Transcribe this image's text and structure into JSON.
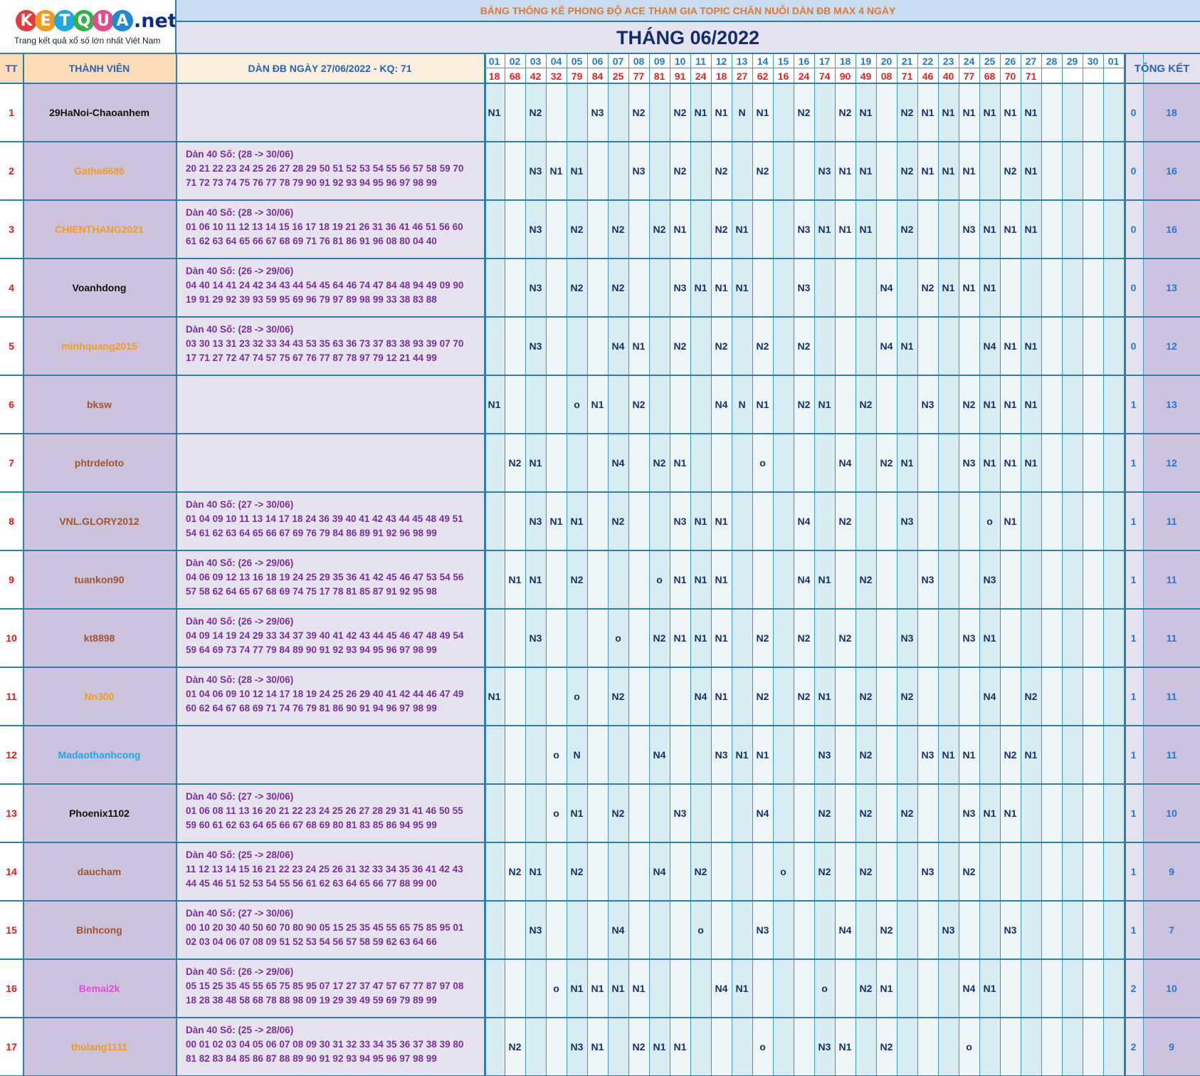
{
  "logo": {
    "letters": [
      "K",
      "E",
      "T",
      "Q",
      "U",
      "A"
    ],
    "letter_colors": [
      "#e23b3b",
      "#f29a1f",
      "#1ea7e1",
      "#2db34a",
      "#e64a8a",
      "#1b8ad3"
    ],
    "suffix": ".net",
    "tagline": "Trang kết quả xổ số lớn nhất Việt Nam"
  },
  "title": "BẢNG THỐNG KÊ PHONG ĐỘ ACE THAM GIA TOPIC CHĂN NUÔI DÀN ĐB MAX 4 NGÀY",
  "month": "THÁNG 06/2022",
  "headers": {
    "tt": "TT",
    "member": "THÀNH VIÊN",
    "dan": "DÀN ĐB NGÀY 27/06/2022 - KQ: 71",
    "summary": "TỔNG KẾT"
  },
  "days": [
    "01",
    "02",
    "03",
    "04",
    "05",
    "06",
    "07",
    "08",
    "09",
    "10",
    "11",
    "12",
    "13",
    "14",
    "15",
    "16",
    "17",
    "18",
    "19",
    "20",
    "21",
    "22",
    "23",
    "24",
    "25",
    "26",
    "27",
    "28",
    "29",
    "30",
    "01"
  ],
  "results": [
    "18",
    "68",
    "42",
    "32",
    "79",
    "84",
    "25",
    "77",
    "81",
    "91",
    "24",
    "18",
    "27",
    "62",
    "16",
    "24",
    "74",
    "90",
    "49",
    "08",
    "71",
    "46",
    "40",
    "77",
    "68",
    "70",
    "71",
    "",
    "",
    "",
    ""
  ],
  "rows": [
    {
      "tt": "1",
      "name": "29HaNoi-Chaoanhem",
      "name_color": "#111111",
      "dan_title": "",
      "dan_line1": "",
      "dan_line2": "",
      "marks": [
        "N1",
        "",
        "N2",
        "",
        "",
        "N3",
        "",
        "N2",
        "",
        "N2",
        "N1",
        "N1",
        "N",
        "N1",
        "",
        "N2",
        "",
        "N2",
        "N1",
        "",
        "N2",
        "N1",
        "N1",
        "N1",
        "N1",
        "N1",
        "N1",
        "",
        "",
        "",
        ""
      ],
      "col1": "0",
      "col2": "18"
    },
    {
      "tt": "2",
      "name": "Gathe8686",
      "name_color": "#f29a1f",
      "dan_title": "Dàn 40 Số: (28 -> 30/06)",
      "dan_line1": "20 21 22 23 24 25 26 27 28 29 50 51 52 53 54 55 56 57 58 59 70",
      "dan_line2": "71 72 73 74 75 76 77 78 79 90 91 92 93 94 95 96 97 98 99",
      "marks": [
        "",
        "",
        "N3",
        "N1",
        "N1",
        "",
        "",
        "N3",
        "",
        "N2",
        "",
        "N2",
        "",
        "N2",
        "",
        "",
        "N3",
        "N1",
        "N1",
        "",
        "N2",
        "N1",
        "N1",
        "N1",
        "",
        "N2",
        "N1",
        "",
        "",
        "",
        ""
      ],
      "col1": "0",
      "col2": "16"
    },
    {
      "tt": "3",
      "name": "CHIENTHANG2021",
      "name_color": "#f29a1f",
      "dan_title": "Dàn 40 Số: (28 -> 30/06)",
      "dan_line1": "01 06 10 11 12 13 14 15 16 17 18 19 21 26 31 36 41 46 51 56 60",
      "dan_line2": "61 62 63 64 65 66 67 68 69 71 76 81 86 91 96 08 80 04 40",
      "marks": [
        "",
        "",
        "N3",
        "",
        "N2",
        "",
        "N2",
        "",
        "N2",
        "N1",
        "",
        "N2",
        "N1",
        "",
        "",
        "N3",
        "N1",
        "N1",
        "N1",
        "",
        "N2",
        "",
        "",
        "N3",
        "N1",
        "N1",
        "N1",
        "",
        "",
        "",
        ""
      ],
      "col1": "0",
      "col2": "16"
    },
    {
      "tt": "4",
      "name": "Voanhdong",
      "name_color": "#111111",
      "dan_title": "Dàn 40 Số: (26 -> 29/06)",
      "dan_line1": "04 40 14 41 24 42 34 43 44 54 45 64 46 74 47 84 48 94 49 09 90",
      "dan_line2": "19 91 29 92 39 93 59 95 69 96 79 97 89 98 99 33 38 83 88",
      "marks": [
        "",
        "",
        "N3",
        "",
        "N2",
        "",
        "N2",
        "",
        "",
        "N3",
        "N1",
        "N1",
        "N1",
        "",
        "",
        "N3",
        "",
        "",
        "",
        "N4",
        "",
        "N2",
        "N1",
        "N1",
        "N1",
        "",
        "",
        "",
        "",
        "",
        ""
      ],
      "col1": "0",
      "col2": "13"
    },
    {
      "tt": "5",
      "name": "minhquang2015",
      "name_color": "#f29a1f",
      "dan_title": "Dàn 40 Số: (28 -> 30/06)",
      "dan_line1": "03 30 13 31 23 32 33 34 43 53 35 63 36 73 37 83 38 93 39 07 70",
      "dan_line2": "17 71 27 72 47 74 57 75 67 76 77 87 78 97 79 12 21 44 99",
      "marks": [
        "",
        "",
        "N3",
        "",
        "",
        "",
        "N4",
        "N1",
        "",
        "N2",
        "",
        "N2",
        "",
        "N2",
        "",
        "N2",
        "",
        "",
        "",
        "N4",
        "N1",
        "",
        "",
        "",
        "N4",
        "N1",
        "N1",
        "",
        "",
        "",
        ""
      ],
      "col1": "0",
      "col2": "12"
    },
    {
      "tt": "6",
      "name": "bksw",
      "name_color": "#a0522d",
      "dan_title": "",
      "dan_line1": "",
      "dan_line2": "",
      "marks": [
        "N1",
        "",
        "",
        "",
        "o",
        "N1",
        "",
        "N2",
        "",
        "",
        "",
        "N4",
        "N",
        "N1",
        "",
        "N2",
        "N1",
        "",
        "N2",
        "",
        "",
        "N3",
        "",
        "N2",
        "N1",
        "N1",
        "N1",
        "",
        "",
        "",
        ""
      ],
      "col1": "1",
      "col2": "13"
    },
    {
      "tt": "7",
      "name": "phtrdeloto",
      "name_color": "#a0522d",
      "dan_title": "",
      "dan_line1": "",
      "dan_line2": "",
      "marks": [
        "",
        "N2",
        "N1",
        "",
        "",
        "",
        "N4",
        "",
        "N2",
        "N1",
        "",
        "",
        "",
        "o",
        "",
        "",
        "",
        "N4",
        "",
        "N2",
        "N1",
        "",
        "",
        "N3",
        "N1",
        "N1",
        "N1",
        "",
        "",
        "",
        ""
      ],
      "col1": "1",
      "col2": "12"
    },
    {
      "tt": "8",
      "name": "VNL.GLORY2012",
      "name_color": "#a0522d",
      "dan_title": "Dàn 40 Số: (27 -> 30/06)",
      "dan_line1": "01 04 09 10 11 13 14 17 18 24 36 39 40 41 42 43 44 45 48 49 51",
      "dan_line2": "54 61 62 63 64 65 66 67 69 76 79 84 86 89 91 92 96 98 99",
      "marks": [
        "",
        "",
        "N3",
        "N1",
        "N1",
        "",
        "N2",
        "",
        "",
        "N3",
        "N1",
        "N1",
        "",
        "",
        "",
        "N4",
        "",
        "N2",
        "",
        "",
        "N3",
        "",
        "",
        "",
        "o",
        "N1",
        "",
        "",
        "",
        "",
        ""
      ],
      "col1": "1",
      "col2": "11"
    },
    {
      "tt": "9",
      "name": "tuankon90",
      "name_color": "#a0522d",
      "dan_title": "Dàn 40 Số: (26 -> 29/06)",
      "dan_line1": "04 06 09 12 13 16 18 19 24 25 29 35 36 41 42 45 46 47 53 54 56",
      "dan_line2": "57 58 62 64 65 67 68 69 74 75 17 78 81 85 87 91 92 95 98",
      "marks": [
        "",
        "N1",
        "N1",
        "",
        "N2",
        "",
        "",
        "",
        "o",
        "N1",
        "N1",
        "N1",
        "",
        "",
        "",
        "N4",
        "N1",
        "",
        "N2",
        "",
        "",
        "N3",
        "",
        "",
        "N3",
        "",
        "",
        "",
        "",
        "",
        ""
      ],
      "col1": "1",
      "col2": "11"
    },
    {
      "tt": "10",
      "name": "kt8898",
      "name_color": "#a0522d",
      "dan_title": "Dàn 40 Số: (26 -> 29/06)",
      "dan_line1": "04 09 14 19 24 29 33 34 37 39 40 41 42 43 44 45 46 47 48 49 54",
      "dan_line2": "59 64 69 73 74 77 79 84 89 90 91 92 93 94 95 96 97 98 99",
      "marks": [
        "",
        "",
        "N3",
        "",
        "",
        "",
        "o",
        "",
        "N2",
        "N1",
        "N1",
        "N1",
        "",
        "N2",
        "",
        "N2",
        "",
        "N2",
        "",
        "",
        "N3",
        "",
        "",
        "N3",
        "N1",
        "",
        "",
        "",
        "",
        "",
        ""
      ],
      "col1": "1",
      "col2": "11"
    },
    {
      "tt": "11",
      "name": "Nn300",
      "name_color": "#f29a1f",
      "dan_title": "Dàn 40 Số: (28 -> 30/06)",
      "dan_line1": "01 04 06 09 10 12 14 17 18 19 24 25 26 29 40 41 42 44 46 47 49",
      "dan_line2": "60 62 64 67 68 69 71 74 76 79 81 86 90 91 94 96 97 98 99",
      "marks": [
        "N1",
        "",
        "",
        "",
        "o",
        "",
        "N2",
        "",
        "",
        "",
        "N4",
        "N1",
        "",
        "N2",
        "",
        "N2",
        "N1",
        "",
        "N2",
        "",
        "N2",
        "",
        "",
        "",
        "N4",
        "",
        "N2",
        "",
        "",
        "",
        ""
      ],
      "col1": "1",
      "col2": "11"
    },
    {
      "tt": "12",
      "name": "Madaothanhcong",
      "name_color": "#1ea7e1",
      "dan_title": "",
      "dan_line1": "",
      "dan_line2": "",
      "marks": [
        "",
        "",
        "",
        "o",
        "N",
        "",
        "",
        "",
        "N4",
        "",
        "",
        "N3",
        "N1",
        "N1",
        "",
        "",
        "N3",
        "",
        "N2",
        "",
        "",
        "N3",
        "N1",
        "N1",
        "",
        "N2",
        "N1",
        "",
        "",
        "",
        ""
      ],
      "col1": "1",
      "col2": "11"
    },
    {
      "tt": "13",
      "name": "Phoenix1102",
      "name_color": "#111111",
      "dan_title": "Dàn 40 Số: (27 -> 30/06)",
      "dan_line1": "01 06 08 11 13 16 20 21 22 23 24 25 26 27 28 29 31 41 46 50 55",
      "dan_line2": "59 60 61 62 63 64 65 66 67 68 69 80 81 83 85 86 94 95 99",
      "marks": [
        "",
        "",
        "",
        "o",
        "N1",
        "",
        "N2",
        "",
        "",
        "N3",
        "",
        "",
        "",
        "N4",
        "",
        "",
        "N2",
        "",
        "N2",
        "",
        "N2",
        "",
        "",
        "N3",
        "N1",
        "N1",
        "",
        "",
        "",
        "",
        ""
      ],
      "col1": "1",
      "col2": "10"
    },
    {
      "tt": "14",
      "name": "daucham",
      "name_color": "#a0522d",
      "dan_title": "Dàn 40 Số: (25 -> 28/06)",
      "dan_line1": "11 12 13 14 15 16 21 22 23 24 25 26 31 32 33 34 35 36 41 42 43",
      "dan_line2": "44 45 46 51 52 53 54 55 56 61 62 63 64 65 66 77 88 99 00",
      "marks": [
        "",
        "N2",
        "N1",
        "",
        "N2",
        "",
        "",
        "",
        "N4",
        "",
        "N2",
        "",
        "",
        "",
        "o",
        "",
        "N2",
        "",
        "N2",
        "",
        "",
        "N3",
        "",
        "N2",
        "",
        "",
        "",
        "",
        "",
        "",
        ""
      ],
      "col1": "1",
      "col2": "9"
    },
    {
      "tt": "15",
      "name": "Binhcong",
      "name_color": "#a0522d",
      "dan_title": "Dàn 40 Số: (27 -> 30/06)",
      "dan_line1": "00 10 20 30 40 50 60 70 80 90 05 15 25 35 45 55 65 75 85 95 01",
      "dan_line2": "02 03 04 06 07 08 09 51 52 53 54 56 57 58 59 62 63 64 66",
      "marks": [
        "",
        "",
        "N3",
        "",
        "",
        "",
        "N4",
        "",
        "",
        "",
        "o",
        "",
        "",
        "N3",
        "",
        "",
        "",
        "N4",
        "",
        "N2",
        "",
        "",
        "N3",
        "",
        "",
        "N3",
        "",
        "",
        "",
        "",
        ""
      ],
      "col1": "1",
      "col2": "7"
    },
    {
      "tt": "16",
      "name": "Bemai2k",
      "name_color": "#e64ad0",
      "dan_title": "Dàn 40 Số: (26 -> 29/06)",
      "dan_line1": "05 15 25 35 45 55 65 75 85 95 07 17 27 37 47 57 67 77 87 97 08",
      "dan_line2": "18 28 38 48 58 68 78 88 98 09 19 29 39 49 59 69 79 89 99",
      "marks": [
        "",
        "",
        "",
        "o",
        "N1",
        "N1",
        "N1",
        "N1",
        "",
        "",
        "",
        "N4",
        "N1",
        "",
        "",
        "",
        "o",
        "",
        "N2",
        "N1",
        "",
        "",
        "",
        "N4",
        "N1",
        "",
        "",
        "",
        "",
        "",
        ""
      ],
      "col1": "2",
      "col2": "10"
    },
    {
      "tt": "17",
      "name": "thulang1111",
      "name_color": "#f29a1f",
      "dan_title": "Dàn 40 Số: (25 -> 28/06)",
      "dan_line1": "00 01 02 03 04 05 06 07 08 09 30 31 32 33 34 35 36 37 38 39 80",
      "dan_line2": "81 82 83 84 85 86 87 88 89 90 91 92 93 94 95 96 97 98 99",
      "marks": [
        "",
        "N2",
        "",
        "",
        "N3",
        "N1",
        "",
        "N2",
        "N1",
        "N1",
        "",
        "",
        "",
        "o",
        "",
        "",
        "N3",
        "N1",
        "",
        "N2",
        "",
        "",
        "",
        "o",
        "",
        "",
        "",
        "",
        "",
        "",
        ""
      ],
      "col1": "2",
      "col2": "9"
    }
  ]
}
